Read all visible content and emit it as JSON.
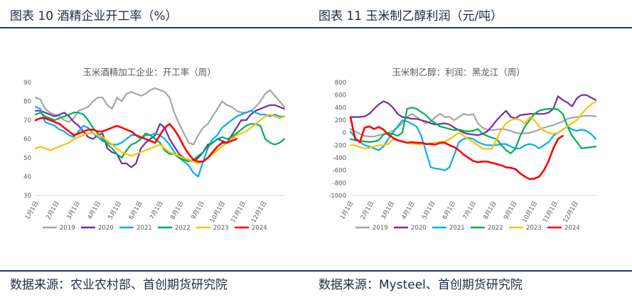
{
  "left_header": {
    "title": "图表  10  酒精企业开工率（%）"
  },
  "right_header": {
    "title": "图表  11  玉米制乙醇利润（元/吨）"
  },
  "left_footer": {
    "source": "数据来源：农业农村部、首创期货研究院"
  },
  "right_footer": {
    "source": "数据来源：Mysteel、首创期货研究院"
  },
  "colors": {
    "rule": "#1f3a66",
    "2019": "#a6a6a6",
    "2020": "#7030a0",
    "2021": "#00b0f0",
    "2022": "#00b050",
    "2023": "#ffc000",
    "2024": "#ff0000"
  },
  "chart_data": [
    {
      "type": "line",
      "title": "玉米酒精加工企业：开工率（周）",
      "xlabel": "",
      "ylabel": "",
      "ylim": [
        30,
        90
      ],
      "yticks": [
        30,
        40,
        50,
        60,
        70,
        80,
        90
      ],
      "x_tick_labels": [
        "1月1日",
        "2月1日",
        "3月1日",
        "4月1日",
        "5月1日",
        "6月1日",
        "7月1日",
        "8月1日",
        "9月1日",
        "10月1日",
        "11月1日",
        "12月1日"
      ],
      "grid": false,
      "legend": "bottom",
      "series": [
        {
          "name": "2019",
          "values": [
            82,
            81,
            76,
            74,
            73,
            72,
            70,
            69,
            71,
            75,
            76,
            77,
            80,
            82,
            82,
            78,
            76,
            82,
            80,
            84,
            85,
            84,
            83,
            84,
            86,
            87,
            86,
            85,
            82,
            74,
            68,
            63,
            58,
            57,
            62,
            66,
            68,
            72,
            76,
            80,
            78,
            77,
            75,
            74,
            74,
            75,
            77,
            80,
            84,
            86,
            83,
            80,
            77
          ]
        },
        {
          "name": "2020",
          "values": [
            75,
            75,
            74,
            73,
            72,
            73,
            74,
            72,
            69,
            67,
            64,
            61,
            60,
            62,
            63,
            55,
            53,
            52,
            47,
            47,
            45,
            47,
            55,
            58,
            60,
            62,
            68,
            66,
            60,
            56,
            52,
            50,
            49,
            48,
            50,
            53,
            57,
            58,
            60,
            59,
            58,
            62,
            66,
            70,
            70,
            73,
            75,
            76,
            77,
            78,
            78,
            77,
            76
          ]
        },
        {
          "name": "2021",
          "values": [
            77,
            76,
            69,
            68,
            67,
            65,
            64,
            62,
            61,
            64,
            67,
            66,
            63,
            61,
            59,
            58,
            57,
            57,
            58,
            60,
            62,
            62,
            60,
            62,
            62,
            63,
            62,
            60,
            57,
            53,
            50,
            48,
            46,
            42,
            40,
            48,
            55,
            60,
            62,
            66,
            68,
            70,
            72,
            73,
            74,
            75,
            74,
            73,
            73,
            72,
            73,
            72,
            72
          ]
        },
        {
          "name": "2022",
          "values": [
            73,
            74,
            72,
            71,
            70,
            71,
            72,
            73,
            74,
            74,
            73,
            70,
            66,
            63,
            60,
            57,
            55,
            52,
            50,
            54,
            57,
            58,
            60,
            63,
            62,
            60,
            58,
            54,
            52,
            52,
            50,
            49,
            48,
            49,
            51,
            53,
            56,
            58,
            60,
            61,
            60,
            61,
            63,
            65,
            67,
            68,
            68,
            67,
            60,
            58,
            57,
            58,
            60
          ]
        },
        {
          "name": "2023",
          "values": [
            55,
            56,
            55,
            54,
            55,
            56,
            57,
            58,
            60,
            61,
            62,
            63,
            63,
            62,
            61,
            59,
            57,
            55,
            53,
            52,
            51,
            52,
            53,
            54,
            55,
            56,
            57,
            55,
            53,
            52,
            51,
            50,
            49,
            48,
            47,
            48,
            50,
            52,
            54,
            56,
            58,
            60,
            62,
            63,
            64,
            66,
            68,
            70,
            72,
            73,
            72,
            71,
            72
          ]
        },
        {
          "name": "2024",
          "values": [
            70,
            71,
            71,
            70,
            69,
            68,
            66,
            64,
            62,
            63,
            64,
            65,
            65,
            64,
            64,
            65,
            66,
            67,
            66,
            65,
            64,
            62,
            61,
            60,
            59,
            58,
            62,
            66,
            68,
            65,
            61,
            56,
            52,
            49,
            48,
            48,
            50,
            53,
            56,
            58,
            58,
            59,
            60
          ]
        }
      ]
    },
    {
      "type": "line",
      "title": "玉米制乙醇：利润：黑龙江（周）",
      "xlabel": "",
      "ylabel": "",
      "ylim": [
        -1000,
        800
      ],
      "yticks": [
        -1000,
        -800,
        -600,
        -400,
        -200,
        0,
        200,
        400,
        600,
        800
      ],
      "x_tick_labels": [
        "1月1日",
        "2月1日",
        "3月1日",
        "4月1日",
        "5月1日",
        "6月1日",
        "7月1日",
        "8月1日",
        "9月1日",
        "10月1日",
        "11月1日",
        "12月1日"
      ],
      "grid": false,
      "legend": "bottom",
      "series": [
        {
          "name": "2019",
          "values": [
            60,
            20,
            -20,
            -50,
            -60,
            -60,
            -40,
            -20,
            0,
            30,
            80,
            150,
            250,
            300,
            250,
            200,
            150,
            180,
            250,
            300,
            250,
            250,
            200,
            250,
            300,
            280,
            300,
            150,
            80,
            50,
            40,
            50,
            60,
            50,
            30,
            0,
            -10,
            -10,
            0,
            20,
            50,
            80,
            100,
            120,
            150,
            180,
            220,
            240,
            250,
            260,
            270,
            270,
            260
          ]
        },
        {
          "name": "2020",
          "values": [
            250,
            250,
            250,
            260,
            300,
            380,
            450,
            500,
            470,
            400,
            300,
            250,
            240,
            220,
            220,
            200,
            180,
            150,
            130,
            140,
            150,
            130,
            80,
            40,
            0,
            -20,
            -30,
            -40,
            -20,
            20,
            100,
            200,
            280,
            350,
            250,
            230,
            280,
            290,
            300,
            300,
            300,
            300,
            320,
            380,
            580,
            520,
            480,
            420,
            550,
            600,
            600,
            560,
            520
          ]
        },
        {
          "name": "2021",
          "values": [
            20,
            -80,
            -150,
            -200,
            -220,
            -250,
            -280,
            -220,
            -100,
            0,
            100,
            200,
            180,
            140,
            100,
            -50,
            -300,
            -550,
            -570,
            -580,
            -600,
            -550,
            -350,
            -150,
            -100,
            -80,
            -100,
            -150,
            -180,
            -200,
            -200,
            -200,
            -180,
            -180,
            -220,
            -250,
            -250,
            -200,
            -180,
            -200,
            -250,
            -200,
            -150,
            -50,
            0,
            50,
            100,
            50,
            30,
            50,
            30,
            -20,
            -100
          ]
        },
        {
          "name": "2022",
          "values": [
            -100,
            -120,
            -130,
            -140,
            -150,
            -140,
            -120,
            -30,
            -10,
            -20,
            -50,
            0,
            380,
            400,
            380,
            330,
            280,
            200,
            150,
            100,
            80,
            60,
            40,
            50,
            30,
            20,
            30,
            60,
            -20,
            -50,
            -80,
            -100,
            -200,
            -280,
            -330,
            -250,
            -50,
            100,
            200,
            300,
            350,
            370,
            380,
            380,
            370,
            300,
            100,
            -50,
            -150,
            -250,
            -240,
            -230,
            -220
          ]
        },
        {
          "name": "2023",
          "values": [
            -200,
            -200,
            -230,
            -250,
            -240,
            -220,
            -200,
            -200,
            -180,
            -100,
            -120,
            -140,
            -160,
            -170,
            -180,
            -180,
            -180,
            -170,
            -160,
            -150,
            -140,
            -100,
            -50,
            0,
            -50,
            -100,
            -150,
            -200,
            -250,
            -260,
            -250,
            -100,
            50,
            150,
            200,
            220,
            200,
            150,
            250,
            200,
            100,
            30,
            0,
            -20,
            0,
            50,
            100,
            150,
            200,
            300,
            380,
            450,
            500
          ]
        },
        {
          "name": "2024",
          "values": [
            250,
            -100,
            -150,
            80,
            100,
            60,
            90,
            50,
            -30,
            -80,
            -120,
            -140,
            -160,
            -150,
            -160,
            -160,
            -180,
            -180,
            -190,
            -160,
            -160,
            -200,
            -230,
            -280,
            -350,
            -400,
            -450,
            -470,
            -460,
            -460,
            -480,
            -500,
            -520,
            -550,
            -560,
            -580,
            -650,
            -700,
            -740,
            -730,
            -700,
            -600,
            -450,
            -250,
            -100,
            -50
          ]
        }
      ]
    }
  ]
}
